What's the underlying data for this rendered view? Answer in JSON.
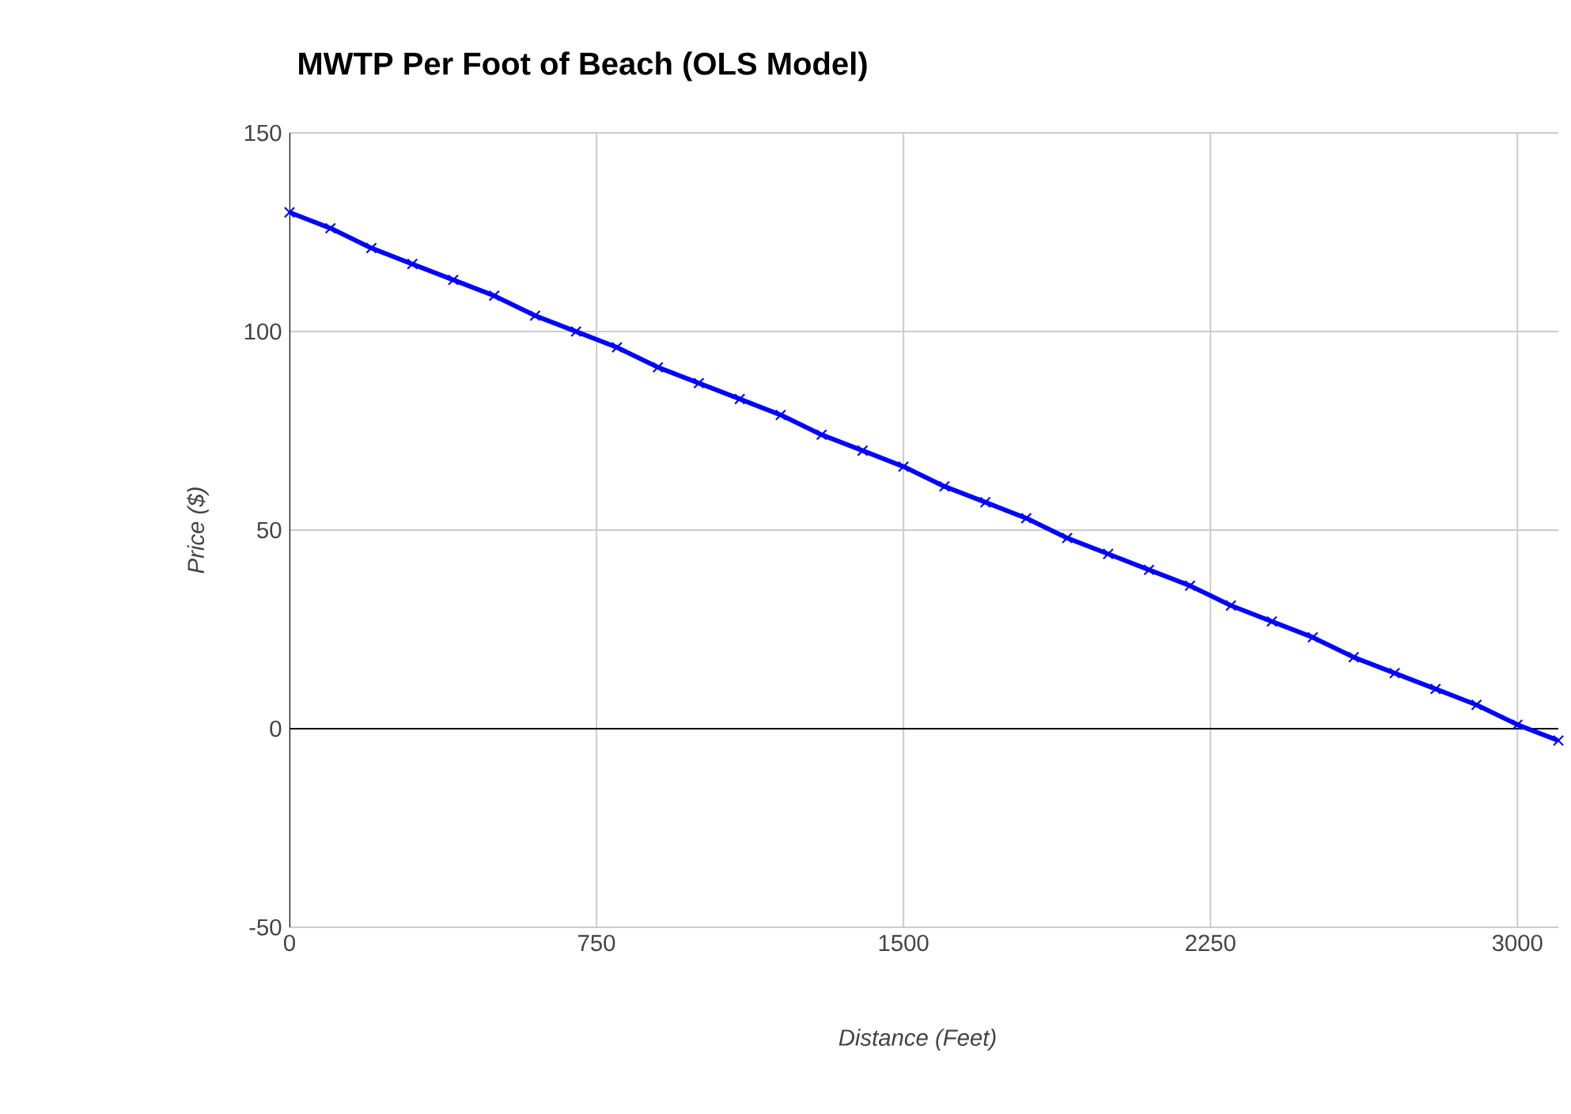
{
  "chart_data": {
    "type": "line",
    "title": "MWTP Per Foot of Beach (OLS Model)",
    "xlabel": "Distance (Feet)",
    "ylabel": "Price ($)",
    "x": [
      0,
      100,
      200,
      300,
      400,
      500,
      600,
      700,
      800,
      900,
      1000,
      1100,
      1200,
      1300,
      1400,
      1500,
      1600,
      1700,
      1800,
      1900,
      2000,
      2100,
      2200,
      2300,
      2400,
      2500,
      2600,
      2700,
      2800,
      2900,
      3000,
      3100
    ],
    "series": [
      {
        "color": "#0000ff",
        "values": [
          130,
          126,
          121,
          117,
          113,
          109,
          104,
          100,
          96,
          91,
          87,
          83,
          79,
          74,
          70,
          66,
          61,
          57,
          53,
          48,
          44,
          40,
          36,
          31,
          27,
          23,
          18,
          14,
          10,
          6,
          1,
          -3
        ]
      }
    ],
    "xlim": [
      0,
      3100
    ],
    "xticks": [
      0,
      750,
      1500,
      2250,
      3000
    ],
    "ylim": [
      -50,
      150
    ],
    "yticks": [
      -50,
      0,
      50,
      100,
      150
    ],
    "grid": true,
    "marker": "cross",
    "line_style": "solid"
  }
}
